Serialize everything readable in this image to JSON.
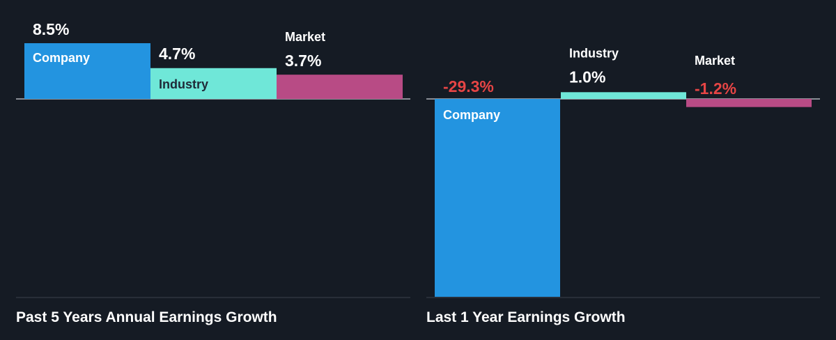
{
  "chart_data": [
    {
      "type": "bar",
      "title": "Past 5 Years Annual Earnings Growth",
      "categories": [
        "Company",
        "Industry",
        "Market"
      ],
      "values": [
        8.5,
        4.7,
        3.7
      ],
      "value_labels": [
        "8.5%",
        "4.7%",
        "3.7%"
      ],
      "unit": "%",
      "colors": [
        "#2394e0",
        "#6fe7d8",
        "#b84b85"
      ],
      "grid": false,
      "legend": "none"
    },
    {
      "type": "bar",
      "title": "Last 1 Year Earnings Growth",
      "categories": [
        "Company",
        "Industry",
        "Market"
      ],
      "values": [
        -29.3,
        1.0,
        -1.2
      ],
      "value_labels": [
        "-29.3%",
        "1.0%",
        "-1.2%"
      ],
      "unit": "%",
      "colors": [
        "#2394e0",
        "#6fe7d8",
        "#b84b85"
      ],
      "negative_value_color": "#e64545",
      "grid": false,
      "legend": "none"
    }
  ]
}
